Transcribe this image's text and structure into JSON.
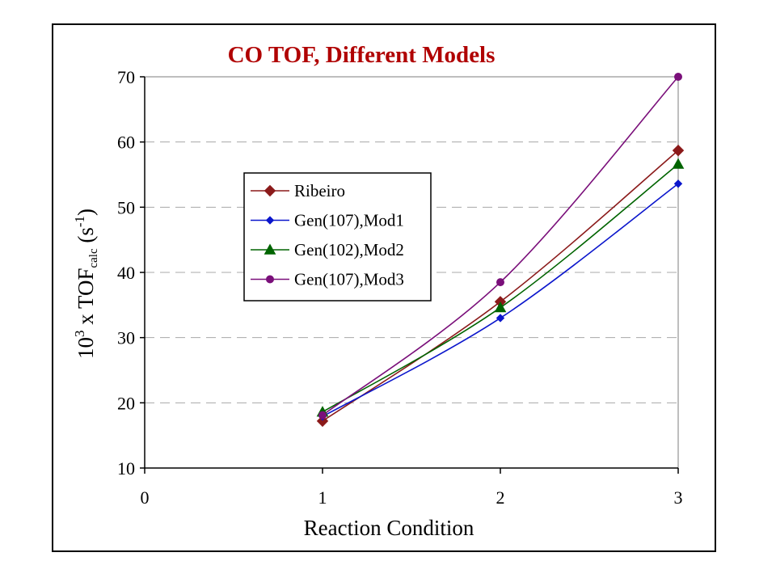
{
  "chart_data": {
    "type": "line",
    "title": "CO TOF, Different Models",
    "xlabel": "Reaction Condition",
    "ylabel": {
      "base": "10",
      "exp": "3",
      "mid": " x TOF",
      "sub": "calc",
      "unit_open": " (s",
      "unit_exp": "-1",
      "unit_close": ")"
    },
    "xlim": [
      0,
      3
    ],
    "ylim": [
      10,
      70
    ],
    "x_ticks": [
      0,
      1,
      2,
      3
    ],
    "y_ticks": [
      10,
      20,
      30,
      40,
      50,
      60,
      70
    ],
    "grid": "horizontal dashed",
    "legend_position": "upper-left inside plot",
    "x": [
      1,
      2,
      3
    ],
    "series": [
      {
        "name": "Ribeiro",
        "values": [
          17.2,
          35.5,
          58.7
        ],
        "color": "#8b1a1a",
        "marker": "diamond"
      },
      {
        "name": "Gen(107),Mod1",
        "values": [
          17.9,
          33.0,
          53.6
        ],
        "color": "#0b16cc",
        "marker": "small-diamond"
      },
      {
        "name": "Gen(102),Mod2",
        "values": [
          18.6,
          34.6,
          56.6
        ],
        "color": "#006400",
        "marker": "triangle"
      },
      {
        "name": "Gen(107),Mod3",
        "values": [
          18.1,
          38.5,
          70.0
        ],
        "color": "#7a0f7a",
        "marker": "circle"
      }
    ]
  },
  "colors": {
    "title": "#b00000",
    "axis": "#000000",
    "grid": "#a8a8a8",
    "background": "#ffffff"
  }
}
